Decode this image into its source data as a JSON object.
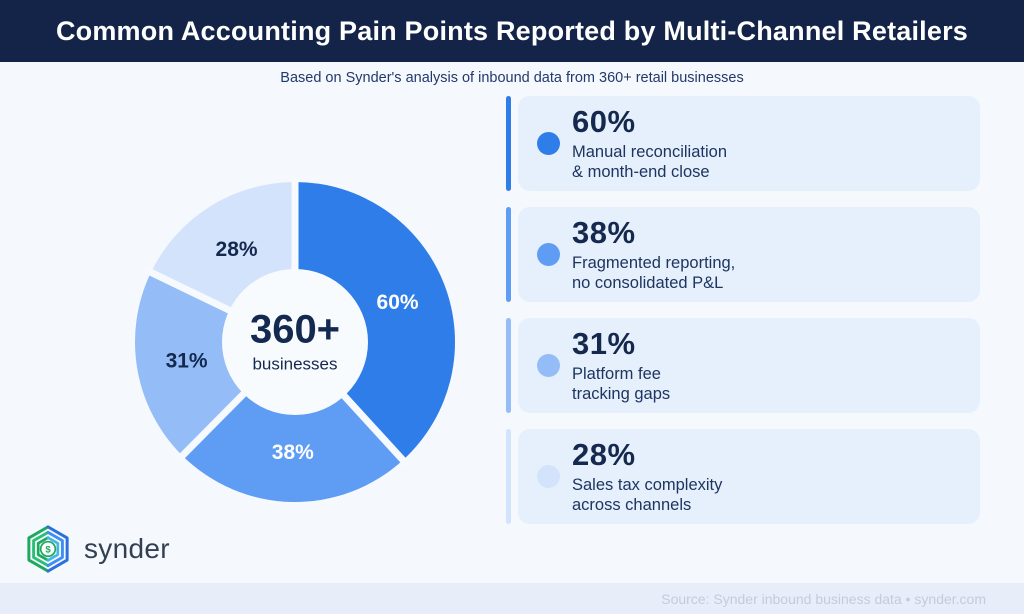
{
  "header": {
    "title": "Common Accounting Pain Points Reported by Multi-Channel Retailers",
    "bg_color": "#132448"
  },
  "subtitle": "Based on Synder's analysis of inbound data from 360+ retail businesses",
  "chart_data": {
    "type": "pie",
    "subtype": "donut",
    "title": "Common Accounting Pain Points Reported by Multi-Channel Retailers",
    "categories": [
      "Manual reconciliation & month-end close",
      "Fragmented reporting, no consolidated P&L",
      "Platform fee tracking gaps",
      "Sales tax complexity across channels"
    ],
    "values": [
      60,
      38,
      31,
      28
    ],
    "labels": [
      "60%",
      "38%",
      "31%",
      "28%"
    ],
    "colors": [
      "#2e7de9",
      "#5f9cf3",
      "#94bcf6",
      "#d3e3fb"
    ],
    "label_colors": [
      "#ffffff",
      "#ffffff",
      "#14294f",
      "#14294f"
    ],
    "start_angle_deg": 0,
    "direction": "clockwise",
    "separator_color": "#f6fafe",
    "center": {
      "value": "360+",
      "label": "businesses"
    }
  },
  "cards": [
    {
      "percent": "60%",
      "description": "Manual reconciliation\n& month-end close",
      "color": "#2e7de9"
    },
    {
      "percent": "38%",
      "description": "Fragmented reporting,\nno consolidated P&L",
      "color": "#5f9cf3"
    },
    {
      "percent": "31%",
      "description": "Platform fee\ntracking gaps",
      "color": "#94bcf6"
    },
    {
      "percent": "28%",
      "description": "Sales tax complexity\nacross channels",
      "color": "#d3e3fb"
    }
  ],
  "footer": {
    "logo_text": "synder",
    "source": "Source: Synder inbound business data  •  synder.com"
  }
}
